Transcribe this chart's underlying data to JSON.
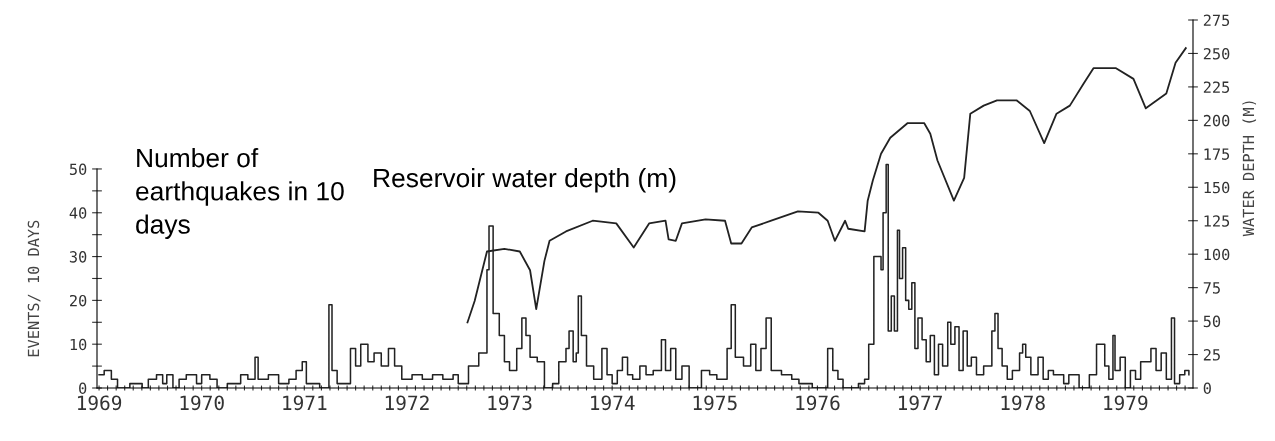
{
  "chart_data": {
    "type": "step",
    "ylabel": "EVENTS/ 10 DAYS",
    "y2label": "WATER DEPTH (M)",
    "xlim": [
      1968.98,
      1979.66
    ],
    "ylim": [
      0,
      84
    ],
    "y2lim": [
      0,
      275
    ],
    "yticks": [
      0,
      {
        "value": 5,
        "label": null
      },
      10,
      {
        "value": 15,
        "label": null
      },
      20,
      {
        "value": 25,
        "label": null
      },
      30,
      {
        "value": 35,
        "label": null
      },
      40,
      {
        "value": 45,
        "label": null
      },
      50
    ],
    "y2ticks": [
      0,
      25,
      50,
      75,
      100,
      125,
      150,
      175,
      200,
      225,
      250,
      275
    ],
    "xticks": [
      1969,
      {
        "value": 1969.083,
        "label": null
      },
      {
        "value": 1969.167,
        "label": null
      },
      {
        "value": 1969.25,
        "label": null
      },
      {
        "value": 1969.333,
        "label": null
      },
      {
        "value": 1969.417,
        "label": null
      },
      {
        "value": 1969.5,
        "label": null
      },
      {
        "value": 1969.583,
        "label": null
      },
      {
        "value": 1969.667,
        "label": null
      },
      {
        "value": 1969.75,
        "label": null
      },
      {
        "value": 1969.833,
        "label": null
      },
      {
        "value": 1969.917,
        "label": null
      },
      1970,
      {
        "value": 1970.083,
        "label": null
      },
      {
        "value": 1970.167,
        "label": null
      },
      {
        "value": 1970.25,
        "label": null
      },
      {
        "value": 1970.333,
        "label": null
      },
      {
        "value": 1970.417,
        "label": null
      },
      {
        "value": 1970.5,
        "label": null
      },
      {
        "value": 1970.583,
        "label": null
      },
      {
        "value": 1970.667,
        "label": null
      },
      {
        "value": 1970.75,
        "label": null
      },
      {
        "value": 1970.833,
        "label": null
      },
      {
        "value": 1970.917,
        "label": null
      },
      1971,
      {
        "value": 1971.083,
        "label": null
      },
      {
        "value": 1971.167,
        "label": null
      },
      {
        "value": 1971.25,
        "label": null
      },
      {
        "value": 1971.333,
        "label": null
      },
      {
        "value": 1971.417,
        "label": null
      },
      {
        "value": 1971.5,
        "label": null
      },
      {
        "value": 1971.583,
        "label": null
      },
      {
        "value": 1971.667,
        "label": null
      },
      {
        "value": 1971.75,
        "label": null
      },
      {
        "value": 1971.833,
        "label": null
      },
      {
        "value": 1971.917,
        "label": null
      },
      1972,
      {
        "value": 1972.083,
        "label": null
      },
      {
        "value": 1972.167,
        "label": null
      },
      {
        "value": 1972.25,
        "label": null
      },
      {
        "value": 1972.333,
        "label": null
      },
      {
        "value": 1972.417,
        "label": null
      },
      {
        "value": 1972.5,
        "label": null
      },
      {
        "value": 1972.583,
        "label": null
      },
      {
        "value": 1972.667,
        "label": null
      },
      {
        "value": 1972.75,
        "label": null
      },
      {
        "value": 1972.833,
        "label": null
      },
      {
        "value": 1972.917,
        "label": null
      },
      1973,
      {
        "value": 1973.083,
        "label": null
      },
      {
        "value": 1973.167,
        "label": null
      },
      {
        "value": 1973.25,
        "label": null
      },
      {
        "value": 1973.333,
        "label": null
      },
      {
        "value": 1973.417,
        "label": null
      },
      {
        "value": 1973.5,
        "label": null
      },
      {
        "value": 1973.583,
        "label": null
      },
      {
        "value": 1973.667,
        "label": null
      },
      {
        "value": 1973.75,
        "label": null
      },
      {
        "value": 1973.833,
        "label": null
      },
      {
        "value": 1973.917,
        "label": null
      },
      1974,
      {
        "value": 1974.083,
        "label": null
      },
      {
        "value": 1974.167,
        "label": null
      },
      {
        "value": 1974.25,
        "label": null
      },
      {
        "value": 1974.333,
        "label": null
      },
      {
        "value": 1974.417,
        "label": null
      },
      {
        "value": 1974.5,
        "label": null
      },
      {
        "value": 1974.583,
        "label": null
      },
      {
        "value": 1974.667,
        "label": null
      },
      {
        "value": 1974.75,
        "label": null
      },
      {
        "value": 1974.833,
        "label": null
      },
      {
        "value": 1974.917,
        "label": null
      },
      1975,
      {
        "value": 1975.083,
        "label": null
      },
      {
        "value": 1975.167,
        "label": null
      },
      {
        "value": 1975.25,
        "label": null
      },
      {
        "value": 1975.333,
        "label": null
      },
      {
        "value": 1975.417,
        "label": null
      },
      {
        "value": 1975.5,
        "label": null
      },
      {
        "value": 1975.583,
        "label": null
      },
      {
        "value": 1975.667,
        "label": null
      },
      {
        "value": 1975.75,
        "label": null
      },
      {
        "value": 1975.833,
        "label": null
      },
      {
        "value": 1975.917,
        "label": null
      },
      1976,
      {
        "value": 1976.083,
        "label": null
      },
      {
        "value": 1976.167,
        "label": null
      },
      {
        "value": 1976.25,
        "label": null
      },
      {
        "value": 1976.333,
        "label": null
      },
      {
        "value": 1976.417,
        "label": null
      },
      {
        "value": 1976.5,
        "label": null
      },
      {
        "value": 1976.583,
        "label": null
      },
      {
        "value": 1976.667,
        "label": null
      },
      {
        "value": 1976.75,
        "label": null
      },
      {
        "value": 1976.833,
        "label": null
      },
      {
        "value": 1976.917,
        "label": null
      },
      1977,
      {
        "value": 1977.083,
        "label": null
      },
      {
        "value": 1977.167,
        "label": null
      },
      {
        "value": 1977.25,
        "label": null
      },
      {
        "value": 1977.333,
        "label": null
      },
      {
        "value": 1977.417,
        "label": null
      },
      {
        "value": 1977.5,
        "label": null
      },
      {
        "value": 1977.583,
        "label": null
      },
      {
        "value": 1977.667,
        "label": null
      },
      {
        "value": 1977.75,
        "label": null
      },
      {
        "value": 1977.833,
        "label": null
      },
      {
        "value": 1977.917,
        "label": null
      },
      1978,
      {
        "value": 1978.083,
        "label": null
      },
      {
        "value": 1978.167,
        "label": null
      },
      {
        "value": 1978.25,
        "label": null
      },
      {
        "value": 1978.333,
        "label": null
      },
      {
        "value": 1978.417,
        "label": null
      },
      {
        "value": 1978.5,
        "label": null
      },
      {
        "value": 1978.583,
        "label": null
      },
      {
        "value": 1978.667,
        "label": null
      },
      {
        "value": 1978.75,
        "label": null
      },
      {
        "value": 1978.833,
        "label": null
      },
      {
        "value": 1978.917,
        "label": null
      },
      1979,
      {
        "value": 1979.083,
        "label": null
      },
      {
        "value": 1979.167,
        "label": null
      },
      {
        "value": 1979.25,
        "label": null
      },
      {
        "value": 1979.333,
        "label": null
      },
      {
        "value": 1979.417,
        "label": null
      },
      {
        "value": 1979.5,
        "label": null
      },
      {
        "value": 1979.583,
        "label": null
      }
    ],
    "series": [
      {
        "name": "Number of\nearthquakes in 10\ndays",
        "color": "#222222",
        "x": [
          1969.0,
          1969.05,
          1969.12,
          1969.18,
          1969.3,
          1969.42,
          1969.48,
          1969.56,
          1969.62,
          1969.66,
          1969.72,
          1969.78,
          1969.85,
          1969.95,
          1970.0,
          1970.08,
          1970.15,
          1970.25,
          1970.38,
          1970.45,
          1970.52,
          1970.55,
          1970.65,
          1970.75,
          1970.85,
          1970.92,
          1970.98,
          1971.02,
          1971.15,
          1971.24,
          1971.27,
          1971.32,
          1971.45,
          1971.5,
          1971.55,
          1971.62,
          1971.68,
          1971.75,
          1971.82,
          1971.88,
          1971.95,
          1972.05,
          1972.15,
          1972.25,
          1972.35,
          1972.45,
          1972.5,
          1972.6,
          1972.7,
          1972.78,
          1972.8,
          1972.84,
          1972.9,
          1972.95,
          1973.0,
          1973.07,
          1973.12,
          1973.16,
          1973.2,
          1973.27,
          1973.34,
          1973.42,
          1973.48,
          1973.55,
          1973.58,
          1973.62,
          1973.65,
          1973.67,
          1973.7,
          1973.75,
          1973.82,
          1973.9,
          1973.95,
          1974.0,
          1974.05,
          1974.1,
          1974.15,
          1974.2,
          1974.27,
          1974.33,
          1974.4,
          1974.48,
          1974.52,
          1974.57,
          1974.62,
          1974.68,
          1974.75,
          1974.87,
          1974.95,
          1975.02,
          1975.12,
          1975.16,
          1975.2,
          1975.28,
          1975.35,
          1975.4,
          1975.45,
          1975.5,
          1975.55,
          1975.65,
          1975.75,
          1975.82,
          1975.95,
          1976.1,
          1976.15,
          1976.2,
          1976.25,
          1976.4,
          1976.46,
          1976.5,
          1976.55,
          1976.62,
          1976.64,
          1976.67,
          1976.69,
          1976.72,
          1976.75,
          1976.78,
          1976.8,
          1976.83,
          1976.86,
          1976.89,
          1976.92,
          1976.95,
          1976.98,
          1977.02,
          1977.06,
          1977.1,
          1977.14,
          1977.18,
          1977.22,
          1977.27,
          1977.3,
          1977.34,
          1977.38,
          1977.42,
          1977.46,
          1977.5,
          1977.55,
          1977.62,
          1977.7,
          1977.73,
          1977.76,
          1977.8,
          1977.85,
          1977.9,
          1977.97,
          1978.0,
          1978.03,
          1978.08,
          1978.15,
          1978.2,
          1978.25,
          1978.3,
          1978.4,
          1978.45,
          1978.55,
          1978.65,
          1978.72,
          1978.8,
          1978.84,
          1978.88,
          1978.9,
          1978.95,
          1979.0,
          1979.05,
          1979.1,
          1979.15,
          1979.25,
          1979.3,
          1979.35,
          1979.4,
          1979.45,
          1979.48,
          1979.53,
          1979.58,
          1979.62
        ],
        "values": [
          3,
          4,
          2,
          0,
          1,
          0,
          2,
          3,
          1,
          3,
          0,
          2,
          3,
          1,
          3,
          2,
          0,
          1,
          3,
          2,
          7,
          2,
          3,
          1,
          2,
          4,
          6,
          1,
          0,
          19,
          4,
          1,
          9,
          5,
          10,
          6,
          8,
          5,
          9,
          5,
          2,
          3,
          2,
          3,
          2,
          3,
          1,
          5,
          8,
          27,
          37,
          17,
          12,
          6,
          4,
          9,
          16,
          12,
          7,
          6,
          0,
          1,
          6,
          9,
          13,
          6,
          8,
          21,
          12,
          5,
          2,
          9,
          3,
          1,
          4,
          7,
          3,
          2,
          5,
          3,
          4,
          11,
          4,
          9,
          2,
          5,
          0,
          4,
          3,
          2,
          9,
          19,
          7,
          5,
          10,
          4,
          9,
          16,
          4,
          3,
          2,
          1,
          0,
          9,
          4,
          2,
          0,
          1,
          2,
          10,
          30,
          27,
          40,
          51,
          13,
          21,
          13,
          36,
          25,
          32,
          20,
          18,
          24,
          9,
          16,
          11,
          6,
          12,
          3,
          10,
          5,
          15,
          10,
          14,
          4,
          13,
          5,
          7,
          3,
          5,
          13,
          17,
          9,
          5,
          2,
          4,
          8,
          10,
          7,
          3,
          7,
          2,
          4,
          3,
          1,
          3,
          0,
          3,
          10,
          5,
          2,
          12,
          4,
          7,
          0,
          4,
          2,
          6,
          9,
          4,
          8,
          2,
          16,
          1,
          3,
          4,
          3
        ]
      },
      {
        "name": "Reservoir water depth (m)",
        "type": "line",
        "axis": "y2",
        "color": "#222222",
        "x": [
          1972.59,
          1972.66,
          1972.78,
          1972.95,
          1973.1,
          1973.2,
          1973.26,
          1973.34,
          1973.39,
          1973.55,
          1973.81,
          1974.04,
          1974.21,
          1974.36,
          1974.52,
          1974.55,
          1974.62,
          1974.68,
          1974.91,
          1975.1,
          1975.16,
          1975.26,
          1975.36,
          1975.55,
          1975.81,
          1976.01,
          1976.1,
          1976.17,
          1976.27,
          1976.3,
          1976.46,
          1976.49,
          1976.54,
          1976.62,
          1976.71,
          1976.88,
          1977.04,
          1977.1,
          1977.17,
          1977.33,
          1977.43,
          1977.49,
          1977.62,
          1977.75,
          1977.94,
          1978.07,
          1978.21,
          1978.33,
          1978.46,
          1978.59,
          1978.69,
          1978.91,
          1979.08,
          1979.2,
          1979.4,
          1979.49,
          1979.59
        ],
        "values": [
          49,
          65,
          102,
          104,
          102,
          88,
          59,
          95,
          110,
          117,
          125,
          123,
          105,
          123,
          125,
          111,
          110,
          123,
          126,
          125,
          108,
          108,
          120,
          125,
          132,
          131,
          125,
          110,
          125,
          119,
          117,
          140,
          155,
          175,
          187,
          198,
          198,
          190,
          170,
          140,
          157,
          205,
          211,
          215,
          215,
          207,
          183,
          205,
          211,
          227,
          239,
          239,
          231,
          209,
          220,
          243,
          254
        ]
      }
    ]
  }
}
